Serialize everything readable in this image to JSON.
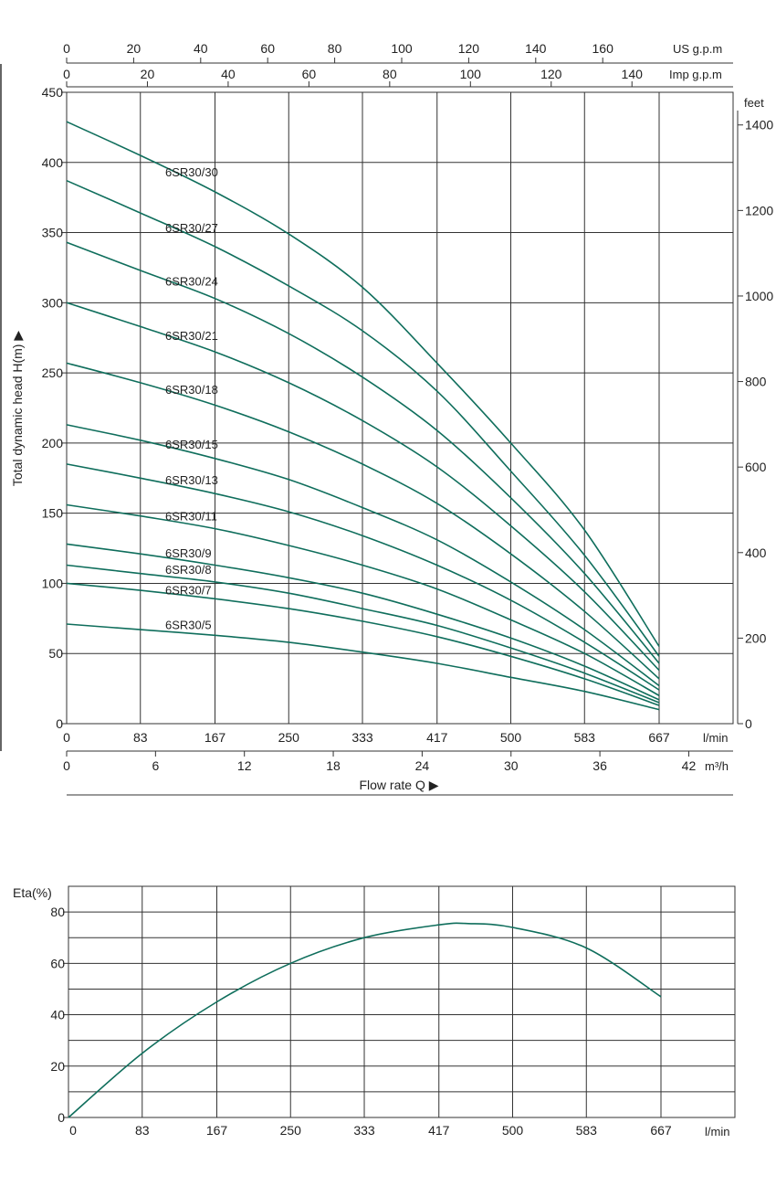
{
  "chart_data": [
    {
      "type": "line",
      "title": "",
      "ylabel": "Total dynamic head H(m) ▶",
      "xlabel": "Flow  rate Q ▶",
      "ylim": [
        0,
        450
      ],
      "yticks": [
        0,
        50,
        100,
        150,
        200,
        250,
        300,
        350,
        400,
        450
      ],
      "x_lmin_ticks": [
        "0",
        "83",
        "167",
        "250",
        "333",
        "417",
        "500",
        "583",
        "667"
      ],
      "x_lmin_unit": "l/min",
      "x_m3h_ticks": [
        "0",
        "6",
        "12",
        "18",
        "24",
        "30",
        "36",
        "42"
      ],
      "x_m3h_unit": "m³/h",
      "x_usgpm_ticks": [
        "0",
        "20",
        "40",
        "60",
        "80",
        "100",
        "120",
        "140",
        "160"
      ],
      "x_usgpm_unit": "US g.p.m",
      "x_impgpm_ticks": [
        "0",
        "20",
        "40",
        "60",
        "80",
        "100",
        "120",
        "140"
      ],
      "x_impgpm_unit": "Imp g.p.m",
      "y_feet_ticks": [
        "0",
        "200",
        "400",
        "600",
        "800",
        "1000",
        "1200",
        "1400"
      ],
      "y_feet_unit": "feet",
      "grid": true,
      "x": [
        0,
        83,
        167,
        250,
        333,
        417,
        500,
        583,
        667
      ],
      "series": [
        {
          "name": "6SR30/30",
          "values": [
            429,
            405,
            379,
            349,
            311,
            257,
            200,
            138,
            55
          ]
        },
        {
          "name": "6SR30/27",
          "values": [
            387,
            364,
            340,
            312,
            280,
            237,
            180,
            120,
            48
          ]
        },
        {
          "name": "6SR30/24",
          "values": [
            343,
            323,
            303,
            278,
            247,
            209,
            161,
            107,
            43
          ]
        },
        {
          "name": "6SR30/21",
          "values": [
            300,
            283,
            265,
            243,
            216,
            183,
            141,
            94,
            38
          ]
        },
        {
          "name": "6SR30/18",
          "values": [
            257,
            243,
            227,
            208,
            185,
            157,
            121,
            80,
            32
          ]
        },
        {
          "name": "6SR30/15",
          "values": [
            213,
            202,
            189,
            174,
            154,
            131,
            101,
            67,
            27
          ]
        },
        {
          "name": "6SR30/13",
          "values": [
            185,
            175,
            164,
            151,
            134,
            113,
            88,
            58,
            24
          ]
        },
        {
          "name": "6SR30/11",
          "values": [
            156,
            148,
            139,
            127,
            113,
            96,
            74,
            50,
            20
          ]
        },
        {
          "name": "6SR30/9",
          "values": [
            128,
            121,
            113,
            104,
            93,
            78,
            61,
            41,
            17
          ]
        },
        {
          "name": "6SR30/8",
          "values": [
            113,
            107,
            101,
            93,
            82,
            70,
            54,
            36,
            15
          ]
        },
        {
          "name": "6SR30/7",
          "values": [
            100,
            95,
            89,
            82,
            73,
            62,
            48,
            32,
            13
          ]
        },
        {
          "name": "6SR30/5",
          "values": [
            71,
            67,
            63,
            58,
            51,
            43,
            33,
            23,
            10
          ]
        }
      ]
    },
    {
      "type": "line",
      "title": "",
      "ylabel": "Eta(%)",
      "xlabel": "",
      "ylim": [
        0,
        90
      ],
      "yticks": [
        0,
        20,
        40,
        60,
        80
      ],
      "x_lmin_ticks": [
        "0",
        "83",
        "167",
        "250",
        "333",
        "417",
        "500",
        "583",
        "667"
      ],
      "x_lmin_unit": "l/min",
      "grid": true,
      "x": [
        0,
        83,
        167,
        250,
        333,
        417,
        450,
        500,
        583,
        667
      ],
      "series": [
        {
          "name": "",
          "values": [
            0,
            25,
            45,
            60,
            70,
            75,
            75.5,
            74,
            66,
            47
          ]
        }
      ]
    }
  ],
  "colors": {
    "curve": "#0f6e5c",
    "grid": "#333333",
    "text": "#222222"
  }
}
